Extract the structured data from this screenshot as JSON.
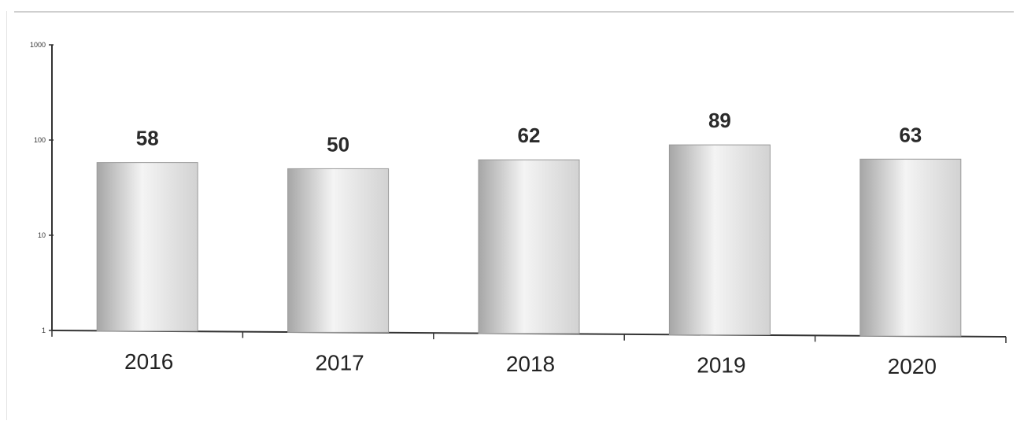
{
  "chart_data": {
    "type": "bar",
    "categories": [
      "2016",
      "2017",
      "2018",
      "2019",
      "2020"
    ],
    "values": [
      58,
      50,
      62,
      89,
      63
    ],
    "data_labels": [
      "58",
      "50",
      "62",
      "89",
      "63"
    ],
    "y_scale": "log",
    "ylim": [
      1,
      1000
    ],
    "y_ticks": [
      1,
      10,
      100,
      1000
    ],
    "y_tick_labels": [
      "1",
      "10",
      "100",
      "1000"
    ],
    "title": "",
    "xlabel": "",
    "ylabel": "",
    "grid": false,
    "legend": "none",
    "colors": {
      "bar_edge": "#9a9a9a",
      "bar_light": "#f4f4f4",
      "bar_mid": "#d2d2d2",
      "bar_dark": "#a6a6a6",
      "axis": "#333333"
    }
  }
}
